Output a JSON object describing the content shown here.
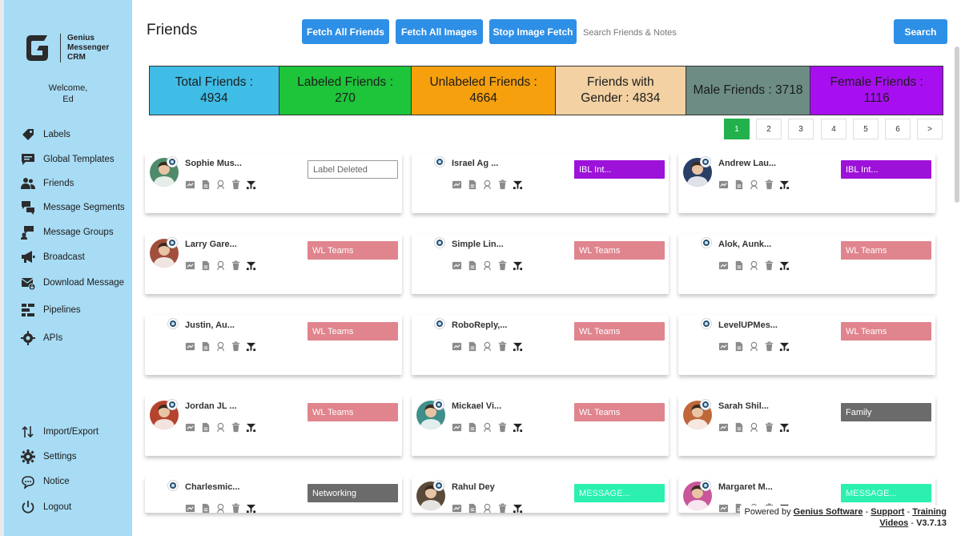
{
  "app": {
    "logo_line1": "Genius",
    "logo_line2": "Messenger",
    "logo_line3": "CRM",
    "welcome": "Welcome,",
    "user": "Ed"
  },
  "sidebar": {
    "items": [
      {
        "label": "Labels",
        "icon": "tag-icon"
      },
      {
        "label": "Global Templates",
        "icon": "chat-icon"
      },
      {
        "label": "Friends",
        "icon": "users-icon"
      },
      {
        "label": "Message Segments",
        "icon": "message-segments-icon"
      },
      {
        "label": "Message Groups",
        "icon": "message-groups-icon"
      },
      {
        "label": "Broadcast",
        "icon": "megaphone-icon"
      },
      {
        "label": "Download Message",
        "icon": "download-message-icon"
      },
      {
        "label": "Pipelines",
        "icon": "pipeline-icon"
      },
      {
        "label": "APIs",
        "icon": "api-icon"
      }
    ],
    "bottom": [
      {
        "label": "Import/Export",
        "icon": "import-export-icon"
      },
      {
        "label": "Settings",
        "icon": "gear-icon"
      },
      {
        "label": "Notice",
        "icon": "notice-icon"
      },
      {
        "label": "Logout",
        "icon": "power-icon"
      }
    ]
  },
  "header": {
    "title": "Friends",
    "fetch_all_friends": "Fetch All Friends",
    "fetch_all_images": "Fetch All Images",
    "stop_image_fetch": "Stop Image Fetch",
    "search_placeholder": "Search Friends & Notes",
    "search_button": "Search"
  },
  "stats": [
    {
      "line1": "Total Friends :",
      "line2": "4934",
      "color": "#3fbde6"
    },
    {
      "line1": "Labeled Friends :",
      "line2": "270",
      "color": "#1ec43a"
    },
    {
      "line1": "Unlabeled Friends :",
      "line2": "4664",
      "color": "#f6a00e"
    },
    {
      "line1": "Friends with",
      "line2": "Gender : 4834",
      "color": "#f3d1a3"
    },
    {
      "line1": "Male Friends : 3718",
      "line2": "",
      "color": "#6c8c84"
    },
    {
      "line1": "Female Friends :",
      "line2": "1116",
      "color": "#a80ff0"
    }
  ],
  "pagination": [
    "1",
    "2",
    "3",
    "4",
    "5",
    "6",
    ">"
  ],
  "friends": [
    {
      "name": "Sophie Mus...",
      "label": "Label Deleted",
      "style": "empty",
      "avatar": "photo",
      "avatar_color": "#4f8b6a"
    },
    {
      "name": "Israel Ag ...",
      "label": "IBL Int...",
      "style": "ibl",
      "avatar": "none",
      "avatar_color": ""
    },
    {
      "name": "Andrew Lau...",
      "label": "IBL Int...",
      "style": "ibl",
      "avatar": "photo",
      "avatar_color": "#2a3f66"
    },
    {
      "name": "Larry Gare...",
      "label": "WL Teams",
      "style": "wl",
      "avatar": "photo",
      "avatar_color": "#a14f3c"
    },
    {
      "name": "Simple Lin...",
      "label": "WL Teams",
      "style": "wl",
      "avatar": "none",
      "avatar_color": ""
    },
    {
      "name": "Alok, Aunk...",
      "label": "WL Teams",
      "style": "wl",
      "avatar": "none",
      "avatar_color": ""
    },
    {
      "name": "Justin, Au...",
      "label": "WL Teams",
      "style": "wl",
      "avatar": "none",
      "avatar_color": ""
    },
    {
      "name": "RoboReply,...",
      "label": "WL Teams",
      "style": "wl",
      "avatar": "none",
      "avatar_color": ""
    },
    {
      "name": "LevelUPMes...",
      "label": "WL Teams",
      "style": "wl",
      "avatar": "none",
      "avatar_color": ""
    },
    {
      "name": "Jordan JL ...",
      "label": "WL Teams",
      "style": "wl",
      "avatar": "photo",
      "avatar_color": "#b5442c"
    },
    {
      "name": "Mickael Vi...",
      "label": "WL Teams",
      "style": "wl",
      "avatar": "photo",
      "avatar_color": "#3f8f8a"
    },
    {
      "name": "Sarah Shil...",
      "label": "Family",
      "style": "family",
      "avatar": "photo",
      "avatar_color": "#c0673a"
    },
    {
      "name": "Charlesmic...",
      "label": "Networking",
      "style": "network",
      "avatar": "none",
      "avatar_color": ""
    },
    {
      "name": "Rahul Dey",
      "label": "MESSAGE...",
      "style": "message",
      "avatar": "photo",
      "avatar_color": "#5a4a3a"
    },
    {
      "name": "Margaret M...",
      "label": "MESSAGE...",
      "style": "message",
      "avatar": "photo",
      "avatar_color": "#c9569a"
    }
  ],
  "footer": {
    "powered_by": "Powered by",
    "company": "Genius Software",
    "sep1": "-",
    "support": "Support",
    "sep2": "-",
    "training": "Training",
    "videos": "Videos",
    "sep3": "-",
    "version": "V3.7.13"
  }
}
